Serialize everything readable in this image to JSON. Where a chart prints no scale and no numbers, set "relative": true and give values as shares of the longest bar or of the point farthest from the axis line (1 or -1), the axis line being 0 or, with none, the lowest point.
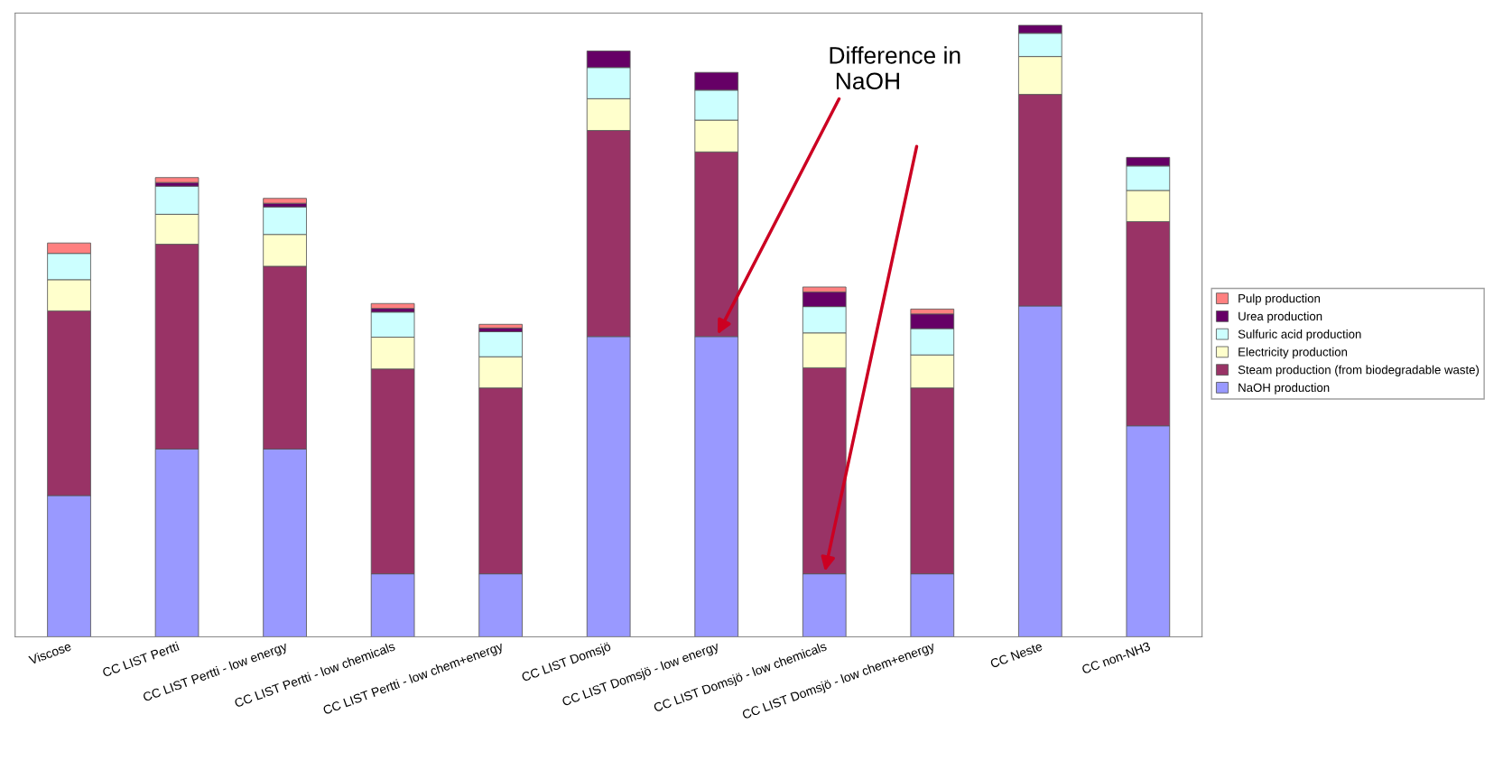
{
  "chart_data": {
    "type": "bar",
    "stacked": true,
    "relative": true,
    "legend": "right",
    "categories": [
      "Viscose",
      "CC LIST Pertti",
      "CC LIST Pertti - low energy",
      "CC LIST Pertti - low chemicals",
      "CC LIST Pertti - low chem+energy",
      "CC LIST Domsjö",
      "CC LIST Domsjö - low energy",
      "CC LIST Domsjö - low chemicals",
      "CC LIST Domsjö - low chem+energy",
      "CC Neste",
      "CC non-NH3"
    ],
    "series": [
      {
        "name": "NaOH production",
        "color": "#9999ff",
        "values": [
          0.231,
          0.307,
          0.307,
          0.103,
          0.103,
          0.491,
          0.491,
          0.103,
          0.103,
          0.541,
          0.345
        ]
      },
      {
        "name": "Steam production (from biodegradable waste)",
        "color": "#993366",
        "values": [
          0.302,
          0.335,
          0.299,
          0.335,
          0.304,
          0.337,
          0.302,
          0.337,
          0.304,
          0.346,
          0.334
        ]
      },
      {
        "name": "Electricity production",
        "color": "#ffffcc",
        "values": [
          0.051,
          0.049,
          0.052,
          0.052,
          0.051,
          0.052,
          0.052,
          0.057,
          0.054,
          0.062,
          0.051
        ]
      },
      {
        "name": "Sulfuric acid production",
        "color": "#ccffff",
        "values": [
          0.043,
          0.046,
          0.045,
          0.041,
          0.041,
          0.051,
          0.049,
          0.043,
          0.043,
          0.038,
          0.04
        ]
      },
      {
        "name": "Urea production",
        "color": "#660066",
        "values": [
          null,
          0.006,
          0.006,
          0.006,
          0.006,
          0.027,
          0.029,
          0.024,
          0.024,
          0.013,
          0.014
        ]
      },
      {
        "name": "Pulp production",
        "color": "#ff8080",
        "values": [
          0.017,
          0.008,
          0.008,
          0.008,
          0.006,
          null,
          null,
          0.008,
          0.008,
          null,
          null
        ]
      }
    ],
    "annotations": [
      {
        "text": "Difference in\n NaOH",
        "x": "CC LIST Domsjö - low energy",
        "y": 0.491
      }
    ]
  }
}
